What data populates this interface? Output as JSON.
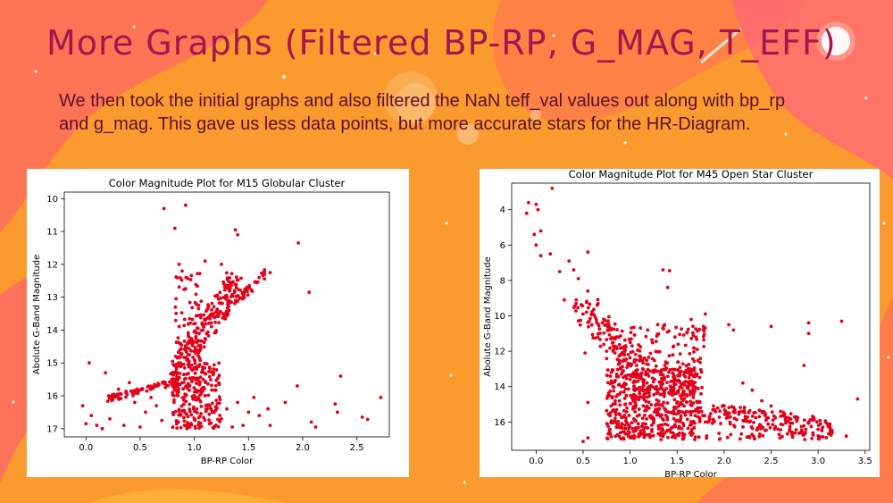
{
  "slide": {
    "title": "More Graphs (Filtered BP-RP, G_MAG, T_EFF)",
    "body": "We then took the initial graphs and also filtered the  NaN teff_val values out along with bp_rp and g_mag. This gave us less data points, but more accurate stars for the HR-Diagram."
  },
  "colors": {
    "background": "#fb9a2e",
    "title": "#a3174e",
    "body_text": "#5a1030",
    "points": "#e3001b"
  },
  "chart_data": [
    {
      "type": "scatter",
      "title": "Color Magnitude Plot for M15 Globular Cluster",
      "xlabel": "BP-RP Color",
      "ylabel": "Abolute G-Band Magnitude",
      "xlim": [
        -0.2,
        2.8
      ],
      "ylim": [
        17.25,
        9.8
      ],
      "y_inverted": true,
      "xticks": [
        0.0,
        0.5,
        1.0,
        1.5,
        2.0,
        2.5
      ],
      "xtick_labels": [
        "0.0",
        "0.5",
        "1.0",
        "1.5",
        "2.0",
        "2.5"
      ],
      "yticks": [
        10,
        11,
        12,
        13,
        14,
        15,
        16,
        17
      ],
      "ytick_labels": [
        "10",
        "11",
        "12",
        "13",
        "14",
        "15",
        "16",
        "17"
      ],
      "grid": false,
      "marker_color": "#e3001b",
      "points": [
        [
          0.72,
          10.3
        ],
        [
          0.92,
          10.2
        ],
        [
          0.82,
          10.9
        ],
        [
          1.4,
          11.1
        ],
        [
          1.38,
          10.95
        ],
        [
          1.96,
          11.35
        ],
        [
          1.1,
          11.9
        ],
        [
          0.86,
          12.0
        ],
        [
          2.06,
          12.85
        ],
        [
          1.7,
          12.25
        ],
        [
          1.65,
          12.3
        ],
        [
          1.25,
          12.0
        ],
        [
          0.03,
          15.0
        ],
        [
          0.18,
          15.3
        ],
        [
          2.35,
          15.4
        ],
        [
          1.95,
          15.7
        ],
        [
          2.72,
          16.05
        ],
        [
          2.3,
          16.25
        ],
        [
          2.32,
          16.5
        ],
        [
          2.55,
          16.65
        ],
        [
          2.6,
          16.72
        ],
        [
          1.84,
          16.2
        ],
        [
          1.68,
          16.4
        ],
        [
          2.08,
          16.8
        ],
        [
          0.4,
          15.6
        ],
        [
          0.3,
          15.8
        ],
        [
          0.05,
          16.6
        ],
        [
          0.1,
          16.9
        ],
        [
          0.15,
          17.0
        ],
        [
          0.0,
          16.85
        ],
        [
          -0.03,
          16.3
        ],
        [
          0.22,
          16.7
        ],
        [
          0.35,
          16.9
        ],
        [
          0.5,
          16.95
        ],
        [
          1.45,
          16.9
        ],
        [
          1.6,
          16.6
        ],
        [
          1.55,
          16.05
        ],
        [
          0.65,
          16.3
        ],
        [
          0.55,
          16.5
        ],
        [
          0.7,
          16.75
        ],
        [
          0.8,
          16.95
        ],
        [
          1.3,
          16.4
        ],
        [
          1.35,
          16.95
        ],
        [
          0.45,
          16.2
        ],
        [
          0.6,
          16.05
        ],
        [
          1.25,
          16.7
        ],
        [
          1.5,
          16.5
        ],
        [
          1.4,
          16.2
        ],
        [
          2.12,
          16.95
        ],
        [
          1.7,
          16.9
        ]
      ]
    },
    {
      "type": "scatter",
      "title": "Color Magnitude Plot for M45 Open Star Cluster",
      "xlabel": "BP-RP Color",
      "ylabel": "Abolute G-Band Magnitude",
      "xlim": [
        -0.26,
        3.55
      ],
      "ylim": [
        17.6,
        2.5
      ],
      "y_inverted": true,
      "xticks": [
        0.0,
        0.5,
        1.0,
        1.5,
        2.0,
        2.5,
        3.0,
        3.5
      ],
      "xtick_labels": [
        "0.0",
        "0.5",
        "1.0",
        "1.5",
        "2.0",
        "2.5",
        "3.0",
        "3.5"
      ],
      "yticks": [
        4,
        6,
        8,
        10,
        12,
        14,
        16
      ],
      "ytick_labels": [
        "4",
        "6",
        "8",
        "10",
        "12",
        "14",
        "16"
      ],
      "grid": false,
      "marker_color": "#e3001b",
      "points": [
        [
          0.17,
          2.8
        ],
        [
          -0.08,
          3.6
        ],
        [
          0.0,
          3.7
        ],
        [
          -0.1,
          4.2
        ],
        [
          0.02,
          4.0
        ],
        [
          0.05,
          5.2
        ],
        [
          -0.02,
          5.4
        ],
        [
          0.0,
          6.0
        ],
        [
          0.05,
          6.6
        ],
        [
          0.15,
          6.5
        ],
        [
          0.55,
          6.4
        ],
        [
          0.35,
          6.9
        ],
        [
          0.4,
          7.4
        ],
        [
          0.25,
          7.5
        ],
        [
          0.45,
          7.9
        ],
        [
          1.35,
          7.4
        ],
        [
          1.42,
          7.45
        ],
        [
          1.4,
          8.4
        ],
        [
          0.3,
          9.1
        ],
        [
          0.55,
          8.6
        ],
        [
          0.65,
          9.4
        ],
        [
          0.52,
          12.1
        ],
        [
          0.55,
          14.9
        ],
        [
          0.55,
          16.9
        ],
        [
          0.5,
          17.1
        ],
        [
          1.65,
          10.2
        ],
        [
          1.7,
          11.2
        ],
        [
          1.8,
          9.9
        ],
        [
          2.05,
          10.5
        ],
        [
          2.1,
          10.8
        ],
        [
          2.5,
          10.6
        ],
        [
          2.9,
          10.4
        ],
        [
          3.25,
          10.3
        ],
        [
          2.85,
          12.8
        ],
        [
          2.9,
          11.0
        ],
        [
          3.42,
          14.7
        ],
        [
          3.3,
          16.8
        ],
        [
          3.05,
          16.3
        ],
        [
          3.15,
          16.6
        ],
        [
          2.9,
          16.0
        ],
        [
          2.7,
          15.8
        ],
        [
          2.6,
          15.4
        ],
        [
          2.4,
          14.8
        ],
        [
          2.5,
          15.1
        ],
        [
          2.3,
          14.2
        ],
        [
          2.2,
          13.8
        ],
        [
          0.75,
          12.0
        ],
        [
          0.8,
          13.2
        ]
      ]
    }
  ]
}
